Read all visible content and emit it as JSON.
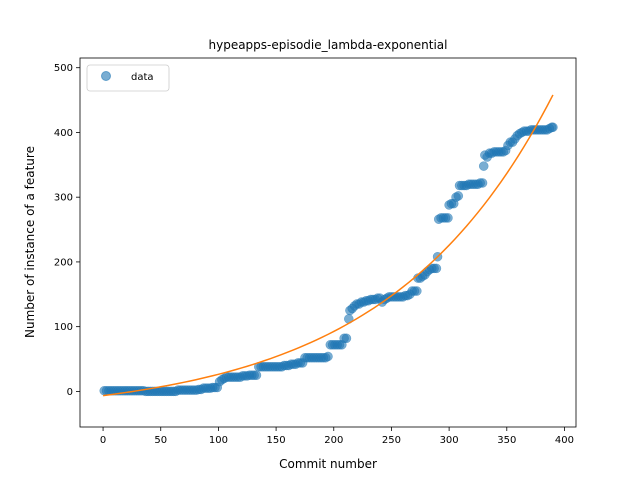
{
  "chart_data": {
    "type": "scatter",
    "title": "hypeapps-episodie_lambda-exponential",
    "xlabel": "Commit number",
    "ylabel": "Number of instance of a feature",
    "xlim": [
      -20,
      410
    ],
    "ylim": [
      -55,
      515
    ],
    "xticks": [
      0,
      50,
      100,
      150,
      200,
      250,
      300,
      350,
      400
    ],
    "yticks": [
      0,
      100,
      200,
      300,
      400,
      500
    ],
    "legend": {
      "position": "upper-left",
      "entries": [
        "data"
      ]
    },
    "colors": {
      "data": "#1f77b4",
      "fit": "#ff7f0e"
    },
    "series": [
      {
        "name": "data",
        "kind": "scatter",
        "points": [
          [
            1,
            1
          ],
          [
            3,
            1
          ],
          [
            5,
            1
          ],
          [
            7,
            1
          ],
          [
            9,
            1
          ],
          [
            11,
            1
          ],
          [
            13,
            1
          ],
          [
            15,
            1
          ],
          [
            17,
            1
          ],
          [
            19,
            1
          ],
          [
            21,
            1
          ],
          [
            23,
            1
          ],
          [
            25,
            1
          ],
          [
            27,
            1
          ],
          [
            29,
            1
          ],
          [
            31,
            1
          ],
          [
            33,
            1
          ],
          [
            35,
            1
          ],
          [
            37,
            0
          ],
          [
            39,
            0
          ],
          [
            41,
            0
          ],
          [
            43,
            0
          ],
          [
            45,
            0
          ],
          [
            47,
            0
          ],
          [
            49,
            0
          ],
          [
            51,
            0
          ],
          [
            53,
            0
          ],
          [
            55,
            0
          ],
          [
            57,
            0
          ],
          [
            59,
            0
          ],
          [
            61,
            0
          ],
          [
            63,
            0
          ],
          [
            65,
            2
          ],
          [
            67,
            2
          ],
          [
            69,
            2
          ],
          [
            71,
            2
          ],
          [
            73,
            2
          ],
          [
            75,
            2
          ],
          [
            77,
            2
          ],
          [
            79,
            2
          ],
          [
            81,
            2
          ],
          [
            83,
            3
          ],
          [
            85,
            3
          ],
          [
            87,
            5
          ],
          [
            89,
            5
          ],
          [
            91,
            5
          ],
          [
            93,
            5
          ],
          [
            95,
            6
          ],
          [
            97,
            6
          ],
          [
            99,
            6
          ],
          [
            101,
            15
          ],
          [
            103,
            18
          ],
          [
            105,
            20
          ],
          [
            107,
            22
          ],
          [
            109,
            22
          ],
          [
            111,
            22
          ],
          [
            113,
            22
          ],
          [
            115,
            22
          ],
          [
            117,
            22
          ],
          [
            119,
            22
          ],
          [
            121,
            24
          ],
          [
            123,
            24
          ],
          [
            125,
            24
          ],
          [
            127,
            25
          ],
          [
            129,
            25
          ],
          [
            131,
            25
          ],
          [
            133,
            25
          ],
          [
            135,
            38
          ],
          [
            137,
            38
          ],
          [
            139,
            38
          ],
          [
            141,
            38
          ],
          [
            143,
            38
          ],
          [
            145,
            38
          ],
          [
            147,
            38
          ],
          [
            149,
            38
          ],
          [
            151,
            38
          ],
          [
            153,
            38
          ],
          [
            155,
            38
          ],
          [
            157,
            40
          ],
          [
            159,
            40
          ],
          [
            161,
            40
          ],
          [
            163,
            42
          ],
          [
            165,
            42
          ],
          [
            167,
            42
          ],
          [
            169,
            44
          ],
          [
            171,
            44
          ],
          [
            173,
            44
          ],
          [
            175,
            52
          ],
          [
            177,
            52
          ],
          [
            179,
            52
          ],
          [
            181,
            52
          ],
          [
            183,
            52
          ],
          [
            185,
            52
          ],
          [
            187,
            52
          ],
          [
            189,
            52
          ],
          [
            191,
            52
          ],
          [
            193,
            52
          ],
          [
            195,
            54
          ],
          [
            197,
            72
          ],
          [
            199,
            72
          ],
          [
            201,
            72
          ],
          [
            203,
            72
          ],
          [
            205,
            72
          ],
          [
            207,
            72
          ],
          [
            209,
            82
          ],
          [
            211,
            82
          ],
          [
            213,
            112
          ],
          [
            214,
            125
          ],
          [
            216,
            128
          ],
          [
            218,
            132
          ],
          [
            220,
            135
          ],
          [
            222,
            135
          ],
          [
            224,
            138
          ],
          [
            226,
            138
          ],
          [
            228,
            140
          ],
          [
            230,
            140
          ],
          [
            232,
            142
          ],
          [
            234,
            142
          ],
          [
            236,
            142
          ],
          [
            238,
            144
          ],
          [
            240,
            144
          ],
          [
            242,
            138
          ],
          [
            244,
            142
          ],
          [
            246,
            144
          ],
          [
            248,
            146
          ],
          [
            250,
            146
          ],
          [
            252,
            146
          ],
          [
            254,
            146
          ],
          [
            256,
            146
          ],
          [
            258,
            146
          ],
          [
            260,
            146
          ],
          [
            262,
            148
          ],
          [
            264,
            148
          ],
          [
            266,
            150
          ],
          [
            268,
            155
          ],
          [
            270,
            155
          ],
          [
            272,
            155
          ],
          [
            273,
            175
          ],
          [
            275,
            175
          ],
          [
            277,
            178
          ],
          [
            279,
            180
          ],
          [
            281,
            185
          ],
          [
            283,
            188
          ],
          [
            285,
            190
          ],
          [
            287,
            190
          ],
          [
            289,
            190
          ],
          [
            290,
            208
          ],
          [
            291,
            266
          ],
          [
            293,
            268
          ],
          [
            295,
            268
          ],
          [
            297,
            268
          ],
          [
            299,
            268
          ],
          [
            300,
            288
          ],
          [
            302,
            290
          ],
          [
            304,
            290
          ],
          [
            306,
            300
          ],
          [
            308,
            302
          ],
          [
            309,
            318
          ],
          [
            311,
            318
          ],
          [
            313,
            318
          ],
          [
            315,
            318
          ],
          [
            317,
            320
          ],
          [
            319,
            320
          ],
          [
            321,
            320
          ],
          [
            323,
            320
          ],
          [
            325,
            320
          ],
          [
            327,
            322
          ],
          [
            329,
            322
          ],
          [
            330,
            348
          ],
          [
            331,
            365
          ],
          [
            333,
            362
          ],
          [
            335,
            368
          ],
          [
            337,
            368
          ],
          [
            339,
            370
          ],
          [
            341,
            370
          ],
          [
            343,
            370
          ],
          [
            345,
            370
          ],
          [
            347,
            370
          ],
          [
            349,
            372
          ],
          [
            351,
            380
          ],
          [
            353,
            385
          ],
          [
            355,
            385
          ],
          [
            357,
            390
          ],
          [
            359,
            395
          ],
          [
            361,
            398
          ],
          [
            363,
            400
          ],
          [
            365,
            402
          ],
          [
            367,
            402
          ],
          [
            369,
            402
          ],
          [
            371,
            404
          ],
          [
            373,
            404
          ],
          [
            375,
            404
          ],
          [
            377,
            404
          ],
          [
            379,
            404
          ],
          [
            381,
            404
          ],
          [
            383,
            404
          ],
          [
            385,
            404
          ],
          [
            387,
            406
          ],
          [
            389,
            408
          ],
          [
            390,
            408
          ]
        ]
      },
      {
        "name": "",
        "kind": "line",
        "model": "exponential",
        "points": [
          [
            0,
            -27
          ],
          [
            25,
            -20
          ],
          [
            50,
            -12
          ],
          [
            75,
            -1
          ],
          [
            100,
            13
          ],
          [
            125,
            30
          ],
          [
            150,
            53
          ],
          [
            175,
            81
          ],
          [
            200,
            116
          ],
          [
            225,
            160
          ],
          [
            250,
            214
          ],
          [
            275,
            281
          ],
          [
            300,
            264
          ],
          [
            325,
            367
          ],
          [
            350,
            427
          ],
          [
            375,
            460
          ],
          [
            390,
            487
          ]
        ]
      }
    ]
  }
}
